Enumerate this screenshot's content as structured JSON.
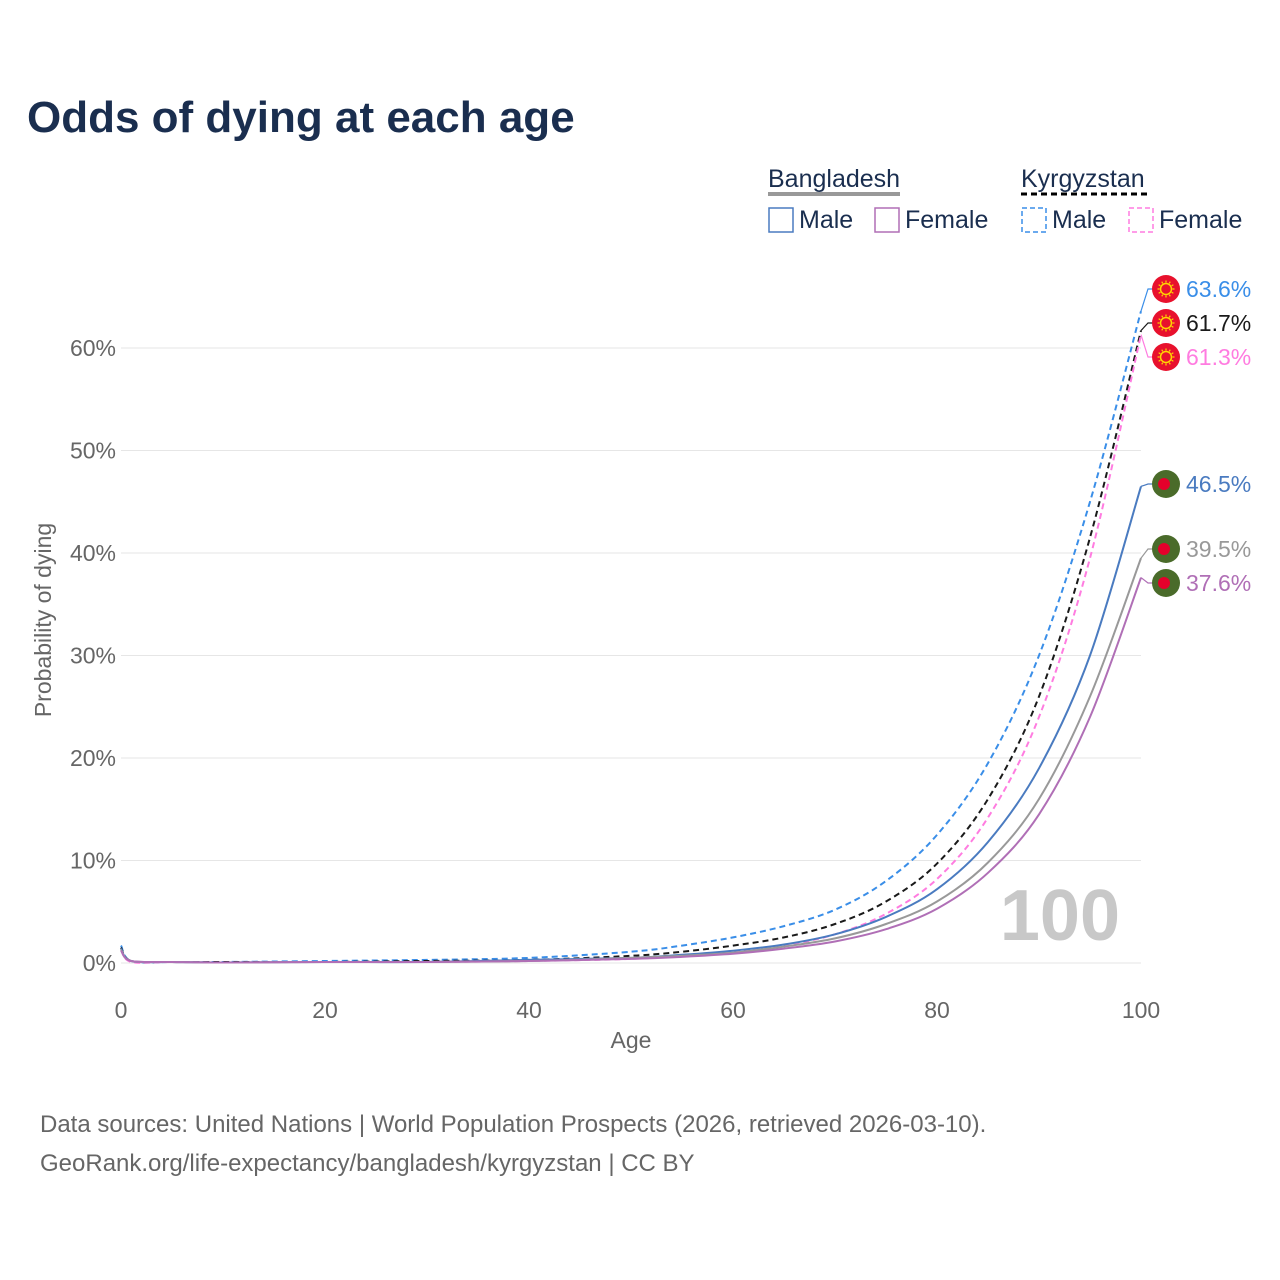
{
  "colors": {
    "title": "#1a2e4f",
    "grid": "#e6e6e6",
    "tick": "#666666",
    "watermark": "#c8c8c8",
    "bd_flag_green": "#4a6b2a",
    "bd_flag_red": "#e4002b",
    "kg_flag_red": "#e8112d",
    "kg_flag_sun": "#ffd700"
  },
  "legend": {
    "groups": [
      {
        "name": "Bangladesh",
        "line_color": "#999999",
        "dashed": false,
        "items": [
          {
            "label": "Male",
            "color": "#4a7bc0"
          },
          {
            "label": "Female",
            "color": "#b06fb6"
          }
        ]
      },
      {
        "name": "Kyrgyzstan",
        "line_color": "#000000",
        "dashed": true,
        "items": [
          {
            "label": "Male",
            "color": "#3a8ee8"
          },
          {
            "label": "Female",
            "color": "#ff7ce0"
          }
        ]
      }
    ]
  },
  "footer": {
    "source_line": "Data sources: United Nations | World Population Prospects (2026, retrieved 2026-03-10).",
    "url_line": "GeoRank.org/life-expectancy/bangladesh/kyrgyzstan | CC BY"
  },
  "chart_data": {
    "type": "line",
    "title": "Odds of dying at each age",
    "xlabel": "Age",
    "ylabel": "Probability of dying",
    "xlim": [
      0,
      100
    ],
    "ylim": [
      0,
      0.66
    ],
    "x_ticks": [
      0,
      20,
      40,
      60,
      80,
      100
    ],
    "x_tick_labels": [
      "0",
      "20",
      "40",
      "60",
      "80",
      "100"
    ],
    "y_ticks": [
      0,
      0.1,
      0.2,
      0.3,
      0.4,
      0.5,
      0.6
    ],
    "y_tick_labels": [
      "0%",
      "10%",
      "20%",
      "30%",
      "40%",
      "50%",
      "60%"
    ],
    "grid": true,
    "legend_position": "top-right",
    "watermark": "100",
    "x": [
      0,
      1,
      5,
      10,
      20,
      30,
      40,
      50,
      55,
      60,
      65,
      70,
      75,
      80,
      85,
      90,
      95,
      100
    ],
    "series": [
      {
        "name": "Kyrgyzstan Male",
        "country": "Kyrgyzstan",
        "sex": "Male",
        "color": "#3a8ee8",
        "dashed": true,
        "values": [
          0.017,
          0.002,
          0.001,
          0.001,
          0.002,
          0.003,
          0.005,
          0.011,
          0.017,
          0.025,
          0.036,
          0.052,
          0.08,
          0.125,
          0.195,
          0.3,
          0.45,
          0.636
        ],
        "end_label": "63.6%",
        "flag": "kg"
      },
      {
        "name": "Kyrgyzstan Total",
        "country": "Kyrgyzstan",
        "sex": "Total",
        "color": "#1a1a1a",
        "dashed": true,
        "values": [
          0.015,
          0.002,
          0.001,
          0.001,
          0.001,
          0.002,
          0.003,
          0.007,
          0.011,
          0.017,
          0.025,
          0.038,
          0.06,
          0.097,
          0.16,
          0.26,
          0.415,
          0.617
        ],
        "end_label": "61.7%",
        "flag": "kg"
      },
      {
        "name": "Kyrgyzstan Female",
        "country": "Kyrgyzstan",
        "sex": "Female",
        "color": "#ff7ce0",
        "dashed": true,
        "values": [
          0.013,
          0.001,
          0.001,
          0.0005,
          0.001,
          0.001,
          0.002,
          0.004,
          0.007,
          0.011,
          0.017,
          0.028,
          0.048,
          0.082,
          0.142,
          0.24,
          0.395,
          0.613
        ],
        "end_label": "61.3%",
        "flag": "kg"
      },
      {
        "name": "Bangladesh Male",
        "country": "Bangladesh",
        "sex": "Male",
        "color": "#4a7bc0",
        "dashed": false,
        "values": [
          0.014,
          0.002,
          0.001,
          0.0005,
          0.001,
          0.001,
          0.003,
          0.005,
          0.008,
          0.012,
          0.018,
          0.028,
          0.045,
          0.072,
          0.118,
          0.19,
          0.3,
          0.465
        ],
        "end_label": "46.5%",
        "flag": "bd"
      },
      {
        "name": "Bangladesh Total",
        "country": "Bangladesh",
        "sex": "Total",
        "color": "#999999",
        "dashed": false,
        "values": [
          0.013,
          0.002,
          0.001,
          0.0005,
          0.001,
          0.001,
          0.002,
          0.005,
          0.007,
          0.01,
          0.016,
          0.024,
          0.038,
          0.06,
          0.098,
          0.16,
          0.26,
          0.395
        ],
        "end_label": "39.5%",
        "flag": "bd"
      },
      {
        "name": "Bangladesh Female",
        "country": "Bangladesh",
        "sex": "Female",
        "color": "#b06fb6",
        "dashed": false,
        "values": [
          0.012,
          0.002,
          0.001,
          0.0005,
          0.001,
          0.001,
          0.002,
          0.004,
          0.006,
          0.009,
          0.014,
          0.021,
          0.033,
          0.053,
          0.088,
          0.145,
          0.24,
          0.376
        ],
        "end_label": "37.6%",
        "flag": "bd"
      }
    ]
  }
}
